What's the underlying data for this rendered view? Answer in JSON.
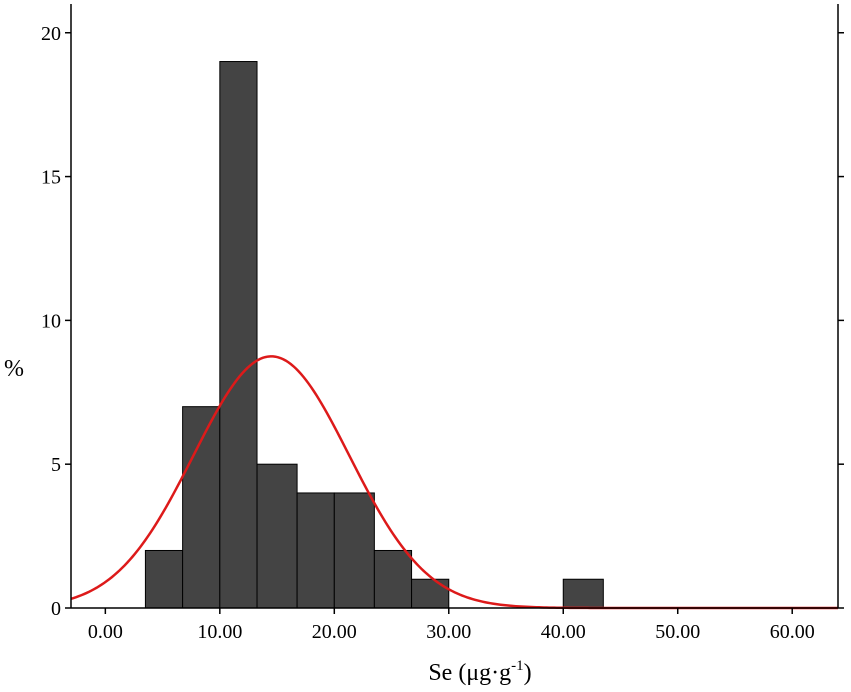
{
  "chart_data": {
    "type": "bar",
    "xlabel": "Se (μg·g",
    "xlabel_sup": "-1",
    "xlabel_close": ")",
    "ylabel": "%",
    "xlim": [
      -3,
      64
    ],
    "ylim": [
      0,
      21
    ],
    "x_ticks": [
      0,
      10,
      20,
      30,
      40,
      50,
      60
    ],
    "x_tick_labels": [
      "0.00",
      "10.00",
      "20.00",
      "30.00",
      "40.00",
      "50.00",
      "60.00"
    ],
    "y_ticks": [
      0,
      5,
      10,
      15,
      20
    ],
    "y_tick_labels": [
      "0",
      "5",
      "10",
      "15",
      "20"
    ],
    "bins": [
      {
        "from": 3.5,
        "to": 6.75,
        "value": 2
      },
      {
        "from": 6.75,
        "to": 10.0,
        "value": 7
      },
      {
        "from": 10.0,
        "to": 13.25,
        "value": 19
      },
      {
        "from": 13.25,
        "to": 16.75,
        "value": 5
      },
      {
        "from": 16.75,
        "to": 20.0,
        "value": 4
      },
      {
        "from": 20.0,
        "to": 23.5,
        "value": 4
      },
      {
        "from": 23.5,
        "to": 26.75,
        "value": 2
      },
      {
        "from": 26.75,
        "to": 30.0,
        "value": 1
      },
      {
        "from": 40.0,
        "to": 43.5,
        "value": 1
      }
    ],
    "fit_curve": {
      "type": "normal",
      "mean": 14.5,
      "sd": 6.8,
      "peak": 8.75
    },
    "bar_color": "#444444",
    "curve_color": "#dd1a1a",
    "grid": false
  }
}
